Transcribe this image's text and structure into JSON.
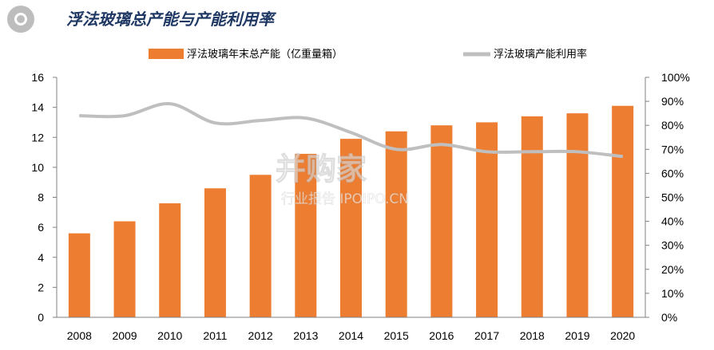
{
  "header": {
    "title": "浮法玻璃总产能与产能利用率"
  },
  "watermark": {
    "brand": "并购家",
    "sub": "行业报告 IPOIPO.CN"
  },
  "colors": {
    "bar": "#ED7D31",
    "line": "#BFBFBF",
    "title": "#1F3864"
  },
  "chart_data": {
    "type": "bar",
    "categories": [
      "2008",
      "2009",
      "2010",
      "2011",
      "2012",
      "2013",
      "2014",
      "2015",
      "2016",
      "2017",
      "2018",
      "2019",
      "2020"
    ],
    "series": [
      {
        "name": "浮法玻璃年末总产能（亿重量箱）",
        "type": "bar",
        "axis": "left",
        "values": [
          5.6,
          6.4,
          7.6,
          8.6,
          9.5,
          10.9,
          11.9,
          12.4,
          12.8,
          13.0,
          13.4,
          13.6,
          14.1
        ]
      },
      {
        "name": "浮法玻璃产能利用率",
        "type": "line",
        "axis": "right",
        "values": [
          84,
          84,
          89,
          81,
          82,
          83,
          77,
          70,
          72,
          69,
          69,
          69,
          67
        ]
      }
    ],
    "yleft": {
      "min": 0,
      "max": 16,
      "ticks": [
        "0",
        "2",
        "4",
        "6",
        "8",
        "10",
        "12",
        "14",
        "16"
      ]
    },
    "yright": {
      "min": 0,
      "max": 100,
      "ticks": [
        "0%",
        "10%",
        "20%",
        "30%",
        "40%",
        "50%",
        "60%",
        "70%",
        "80%",
        "90%",
        "100%"
      ]
    },
    "legend": "top",
    "grid": false
  }
}
